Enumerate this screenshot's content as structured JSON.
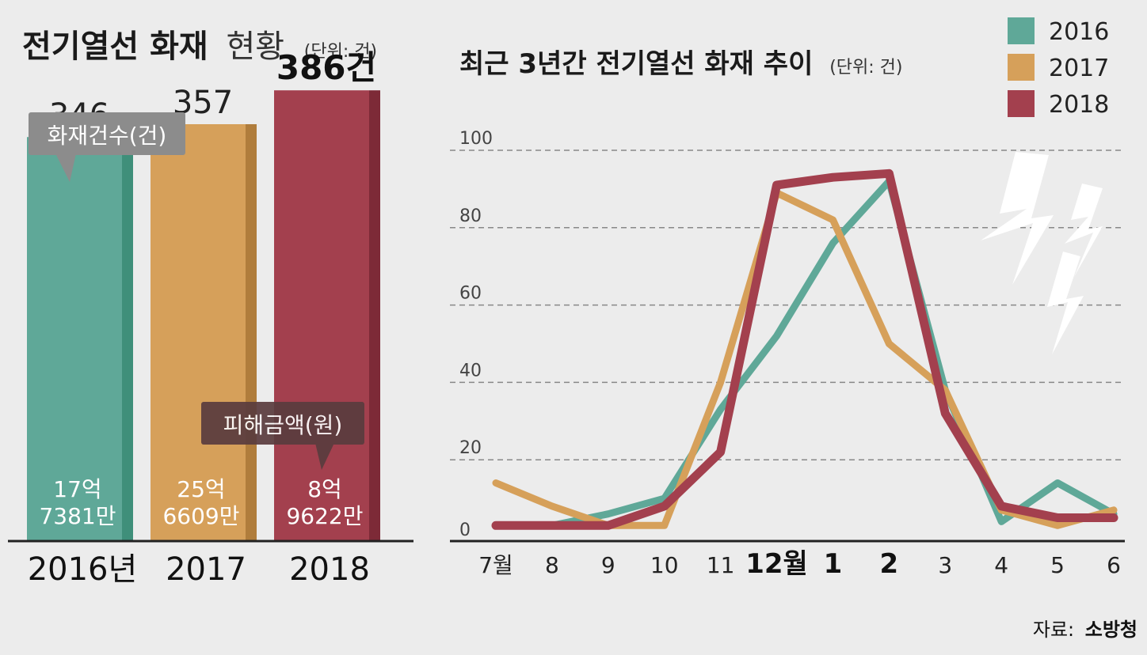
{
  "left_panel": {
    "title_main": "전기열선 화재",
    "title_light": "현황",
    "unit": "(단위: 건)",
    "callout_count": "화재건수(건)",
    "callout_damage": "피해금액(원)"
  },
  "right_panel": {
    "title": "최근 3년간 전기열선 화재 추이",
    "unit": "(단위: 건)"
  },
  "source": {
    "label": "자료:",
    "name": "소방청"
  },
  "colors": {
    "2016": "#5fa898",
    "2017": "#d6a05a",
    "2018": "#a3404e",
    "2016_side": "#3f8f7a",
    "2017_side": "#b07d3c",
    "2018_side": "#7d2a37",
    "grid": "#888888",
    "callout_light": "#8c8c8c",
    "callout_dark": "#5a3c3e"
  },
  "chart_data": [
    {
      "type": "bar",
      "categories": [
        "2016년",
        "2017",
        "2018"
      ],
      "values": [
        346,
        357,
        386
      ],
      "value_labels": [
        "346",
        "357",
        "386건"
      ],
      "damage_labels": [
        [
          "17억",
          "7381만"
        ],
        [
          "25억",
          "6609만"
        ],
        [
          "8억",
          "9622만"
        ]
      ],
      "ylim": [
        0,
        420
      ]
    },
    {
      "type": "line",
      "x": [
        "7월",
        "8",
        "9",
        "10",
        "11",
        "12월",
        "1",
        "2",
        "3",
        "4",
        "5",
        "6"
      ],
      "x_bold": [
        false,
        false,
        false,
        false,
        false,
        true,
        true,
        true,
        false,
        false,
        false,
        false
      ],
      "series": [
        {
          "name": "2016",
          "values": [
            3,
            3,
            6,
            10,
            33,
            52,
            76,
            92,
            38,
            4,
            14,
            6
          ]
        },
        {
          "name": "2017",
          "values": [
            14,
            8,
            3,
            3,
            40,
            89,
            82,
            50,
            38,
            7,
            3,
            7
          ]
        },
        {
          "name": "2018",
          "values": [
            3,
            3,
            3,
            8,
            22,
            91,
            93,
            94,
            32,
            8,
            5,
            5
          ]
        }
      ],
      "yticks": [
        "0",
        "20",
        "40",
        "60",
        "80",
        "100"
      ],
      "ylim": [
        0,
        100
      ],
      "grid": true,
      "legend_position": "top-right"
    }
  ]
}
